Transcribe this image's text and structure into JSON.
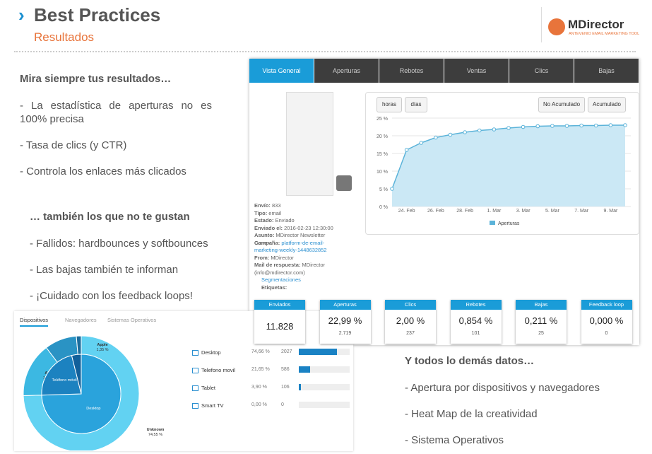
{
  "header": {
    "title": "Best Practices",
    "subtitle": "Resultados",
    "logo": "MDirector",
    "logo_tagline": "ANTEVENIO EMAIL MARKETING TOOL"
  },
  "left": {
    "heading": "Mira siempre tus resultados…",
    "bullets": [
      "- La estadística de aperturas no es 100% precisa",
      "- Tasa de clics (y CTR)",
      "- Controla los enlaces más clicados"
    ],
    "heading2": "… también los que no te gustan",
    "bullets2": [
      "- Fallidos: hardbounces y softbounces",
      "- Las bajas también te informan",
      "- ¡Cuidado con los feedback loops!"
    ]
  },
  "right": {
    "heading": "Y todos lo demás datos…",
    "bullets": [
      "- Apertura por dispositivos y navegadores",
      "- Heat  Map de la creatividad",
      "- Sistema Operativos"
    ]
  },
  "report": {
    "tabs": [
      "Vista General",
      "Aperturas",
      "Rebotes",
      "Ventas",
      "Clics",
      "Bajas"
    ],
    "buttons": [
      "horas",
      "días",
      "No Acumulado",
      "Acumulado"
    ],
    "info": [
      {
        "label": "Envío:",
        "value": "833"
      },
      {
        "label": "Tipo:",
        "value": "email"
      },
      {
        "label": "Estado:",
        "value": "Enviado"
      },
      {
        "label": "Enviado el:",
        "value": "2016-02-23 12:30:00"
      },
      {
        "label": "Asunto:",
        "value": "MDirector Newsletter General"
      },
      {
        "label": "Campaña:",
        "value": "platform-de-email-marketing-weekly-1448632852"
      },
      {
        "label": "From:",
        "value": "MDirector"
      },
      {
        "label": "Mail de respuesta:",
        "value": "MDirector (info@mdirector.com)"
      }
    ],
    "segmentaciones": "Segmentaciones",
    "etiquetas": "Etiquetas:",
    "stats": [
      {
        "label": "Enviados",
        "value": "11.828"
      },
      {
        "label": "Aperturas",
        "value": "22,99 %",
        "count": "2.719"
      },
      {
        "label": "Clics",
        "value": "2,00 %",
        "count": "237"
      },
      {
        "label": "Rebotes",
        "value": "0,854 %",
        "count": "101"
      },
      {
        "label": "Bajas",
        "value": "0,211 %",
        "count": "25"
      },
      {
        "label": "Feedback loop",
        "value": "0,000 %",
        "count": "0"
      }
    ]
  },
  "devices": {
    "tabs": [
      "Dispositivos",
      "Navegadores",
      "Sistemas Operativos"
    ],
    "rows": [
      {
        "name": "Desktop",
        "value": 74.66,
        "label": "74,66 %",
        "count": 2027
      },
      {
        "name": "Telefono movil",
        "value": 21.65,
        "label": "21,65 %",
        "count": 586
      },
      {
        "name": "Tablet",
        "value": 3.9,
        "label": "3,90 %",
        "count": 106
      },
      {
        "name": "Smart TV",
        "value": 0,
        "label": "0,00 %",
        "count": 0
      }
    ]
  },
  "chart_data": [
    {
      "type": "line",
      "categories": [
        null,
        "24. Feb",
        null,
        "26. Feb",
        null,
        "28. Feb",
        null,
        "1. Mar",
        null,
        "3. Mar",
        null,
        "5. Mar",
        null,
        "7. Mar",
        null,
        "9. Mar",
        null
      ],
      "series": [
        {
          "name": "Aperturas",
          "color": "#5bb3d9",
          "values": [
            5,
            16,
            18,
            19.5,
            20.3,
            21,
            21.5,
            21.8,
            22.2,
            22.5,
            22.7,
            22.8,
            22.8,
            22.9,
            22.9,
            23,
            23
          ]
        }
      ],
      "ylim": [
        0,
        25
      ],
      "yticks": [
        {
          "value": 0,
          "label": "0 %"
        },
        {
          "value": 5,
          "label": "5 %"
        },
        {
          "value": 10,
          "label": "10 %"
        },
        {
          "value": 15,
          "label": "15 %"
        },
        {
          "value": 20,
          "label": "20 %"
        },
        {
          "value": 25,
          "label": "25 %"
        }
      ],
      "grid": true,
      "area_color": "#cbe8f5"
    },
    {
      "type": "pie",
      "inner": {
        "categories": [
          "Desktop",
          "Teléfono móvil",
          null
        ],
        "values": [
          74.66,
          21.65,
          3.9
        ],
        "colors": [
          "#2aa3dc",
          "#1c82c0",
          "#12609a"
        ]
      },
      "outer": {
        "categories": [
          "Unknown",
          "Apple",
          "Generic",
          "Apple"
        ],
        "values": [
          74.55,
          15.19,
          8.96,
          1.35
        ],
        "value_labels": [
          "74,55 %",
          "15,19 %",
          "8,96 %",
          "1,35 %"
        ],
        "colors": [
          "#62d2f2",
          "#3cb8e2",
          "#2a93c4",
          "#1b6c9c"
        ]
      }
    }
  ]
}
